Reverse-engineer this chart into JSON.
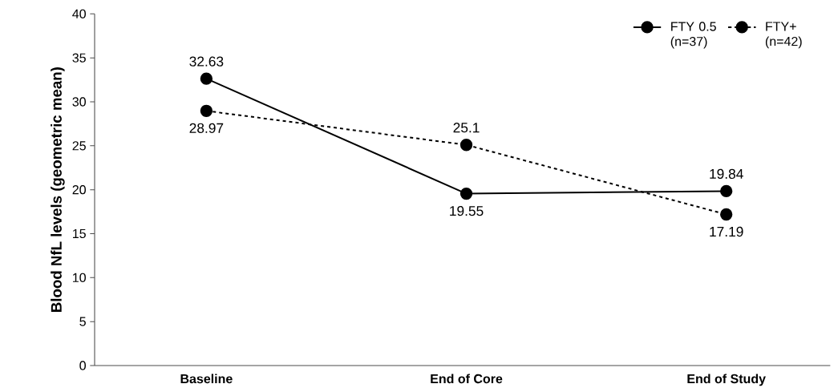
{
  "chart_data": {
    "type": "line",
    "ylabel": "Blood NfL levels (geometric mean)",
    "categories": [
      "Baseline",
      "End of Core",
      "End of Study"
    ],
    "series": [
      {
        "name": "FTY 0.5 (n=37)",
        "color": "#000000",
        "line_style": "solid",
        "values": [
          32.63,
          19.55,
          19.84
        ],
        "value_labels": [
          "32.63",
          "19.55",
          "19.84"
        ]
      },
      {
        "name": "FTY+ (n=42)",
        "color": "#000000",
        "line_style": "dashed",
        "values": [
          28.97,
          25.1,
          17.19
        ],
        "value_labels": [
          "28.97",
          "25.1",
          "17.19"
        ]
      }
    ],
    "ylim": [
      0,
      40
    ],
    "yticks": [
      0,
      5,
      10,
      15,
      20,
      25,
      30,
      35,
      40
    ],
    "marker": "circle",
    "legend": "top right",
    "grid": false
  }
}
